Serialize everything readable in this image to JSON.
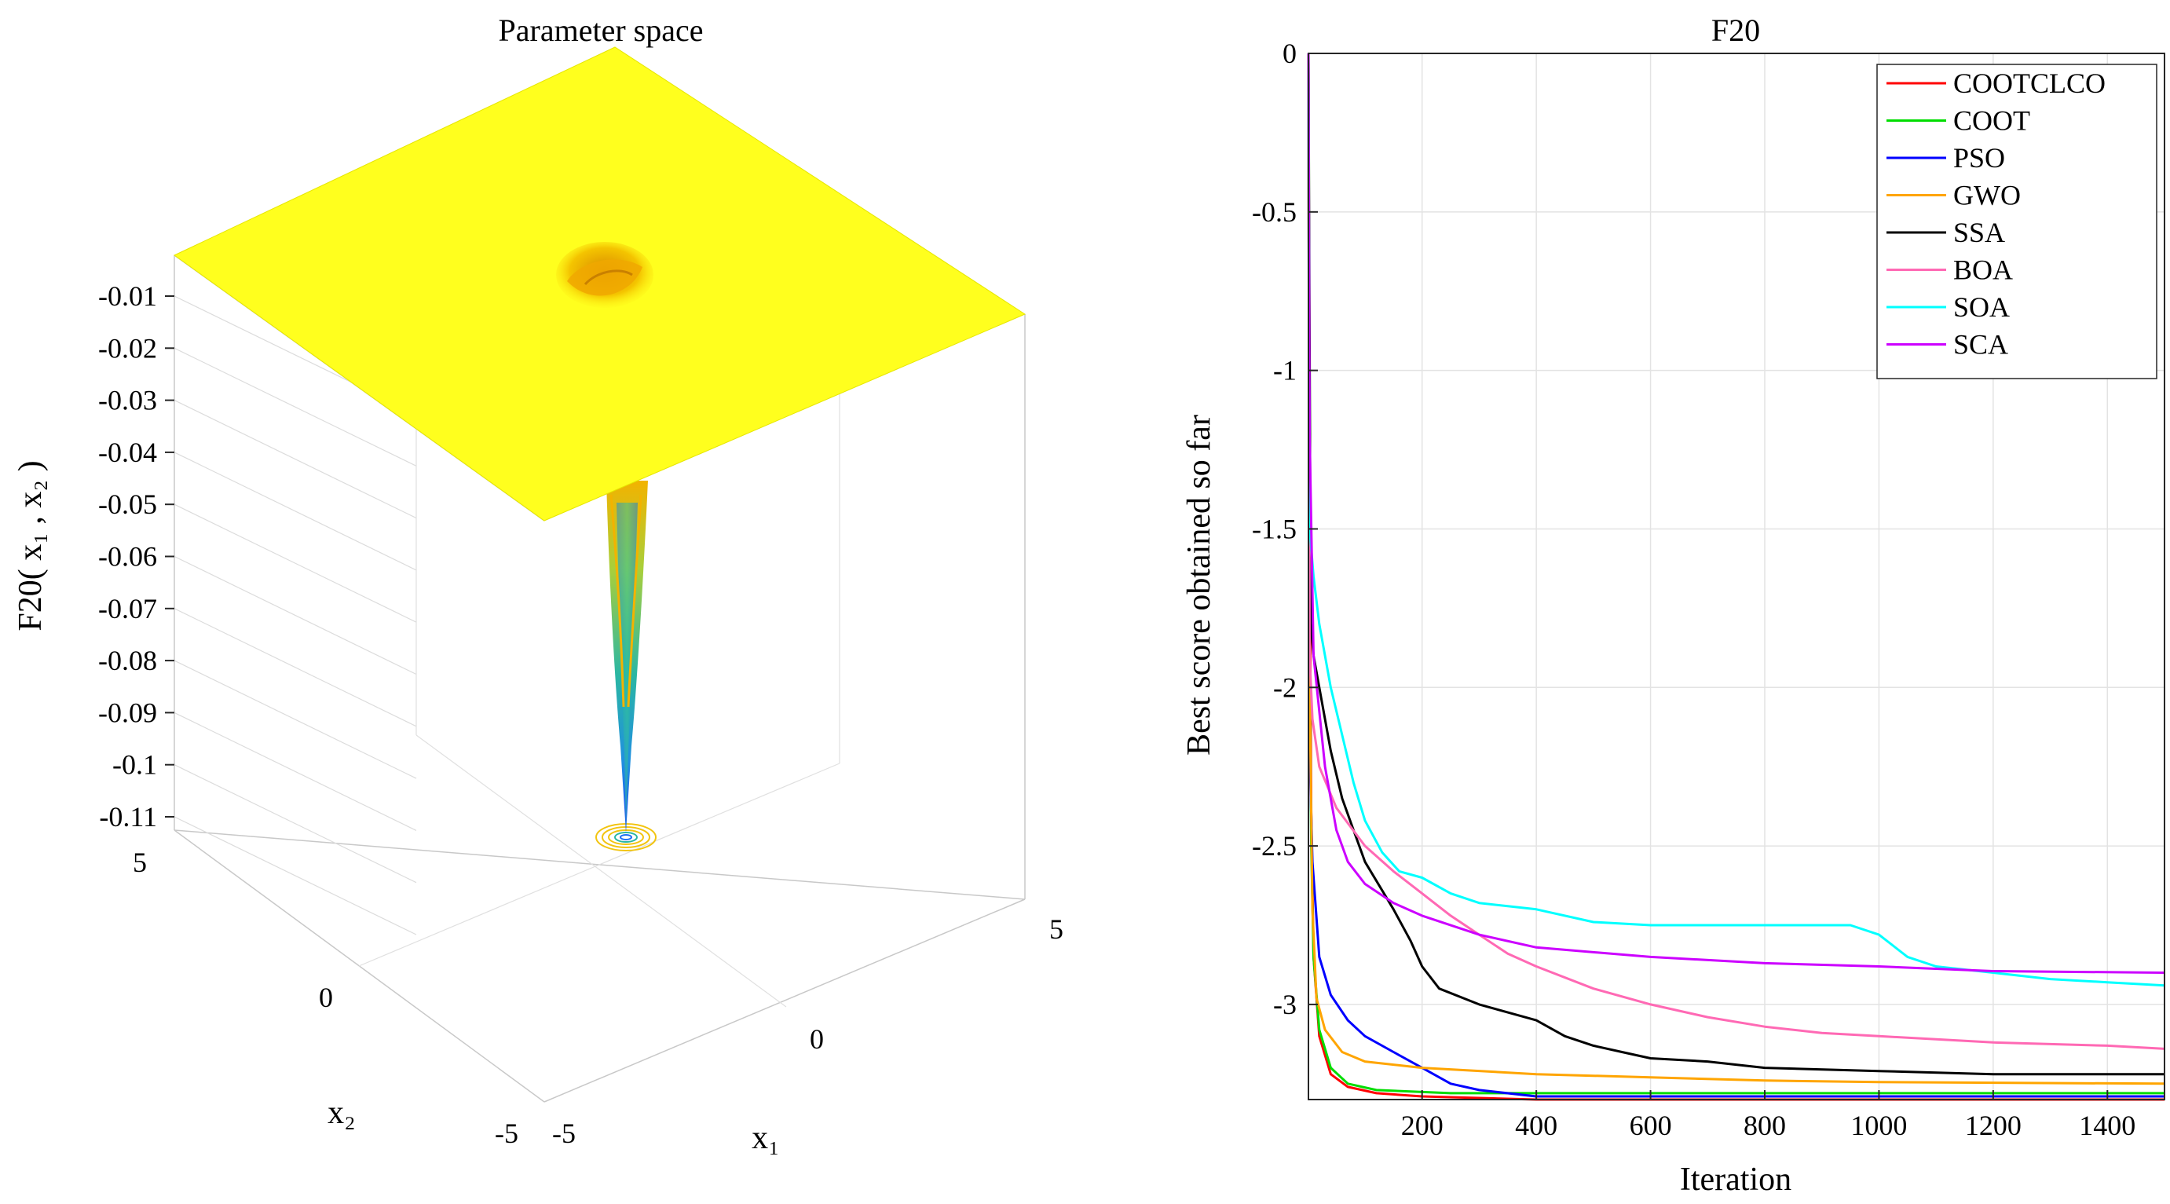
{
  "chart_data": [
    {
      "type": "surface3d",
      "title": "Parameter space",
      "zlabel": "F20( x₁ , x₂ )",
      "xlabel": "x₁",
      "ylabel": "x₂",
      "x_ticks": [
        "-5",
        "0",
        "5"
      ],
      "y_ticks": [
        "-5",
        "0",
        "5"
      ],
      "z_ticks": [
        "-0.01",
        "-0.02",
        "-0.03",
        "-0.04",
        "-0.05",
        "-0.06",
        "-0.07",
        "-0.08",
        "-0.09",
        "-0.1",
        "-0.11"
      ],
      "xlim": [
        -5,
        5
      ],
      "ylim": [
        -5,
        5
      ],
      "zlim": [
        -0.11,
        0
      ],
      "surface_colors": {
        "plateau": "#ffff1e",
        "well_top": "#f5b800",
        "well_mid": "#2bb7a3",
        "well_bottom": "#1b6ef5",
        "contour": "#f2c40f"
      }
    },
    {
      "type": "line",
      "title": "F20",
      "xlabel": "Iteration",
      "ylabel": "Best score obtained so far",
      "xlim": [
        1,
        1500
      ],
      "ylim": [
        -3.3,
        0
      ],
      "x_ticks": [
        "200",
        "400",
        "600",
        "800",
        "1000",
        "1200",
        "1400"
      ],
      "y_ticks": [
        "0",
        "-0.5",
        "-1",
        "-1.5",
        "-2",
        "-2.5",
        "-3"
      ],
      "grid": true,
      "legend_position": "top-right",
      "series": [
        {
          "name": "COOTCLCO",
          "color": "#ff0000",
          "points": [
            [
              1,
              0
            ],
            [
              3,
              -1.6
            ],
            [
              6,
              -2.4
            ],
            [
              10,
              -2.85
            ],
            [
              20,
              -3.1
            ],
            [
              40,
              -3.22
            ],
            [
              70,
              -3.26
            ],
            [
              120,
              -3.28
            ],
            [
              200,
              -3.29
            ],
            [
              400,
              -3.3
            ],
            [
              1500,
              -3.3
            ]
          ]
        },
        {
          "name": "COOT",
          "color": "#00dd00",
          "points": [
            [
              1,
              0
            ],
            [
              3,
              -1.9
            ],
            [
              6,
              -2.5
            ],
            [
              10,
              -2.85
            ],
            [
              20,
              -3.08
            ],
            [
              40,
              -3.2
            ],
            [
              70,
              -3.25
            ],
            [
              120,
              -3.27
            ],
            [
              250,
              -3.28
            ],
            [
              400,
              -3.28
            ],
            [
              1500,
              -3.28
            ]
          ]
        },
        {
          "name": "PSO",
          "color": "#0000ff",
          "points": [
            [
              1,
              0
            ],
            [
              3,
              -2.2
            ],
            [
              8,
              -2.55
            ],
            [
              20,
              -2.85
            ],
            [
              40,
              -2.97
            ],
            [
              70,
              -3.05
            ],
            [
              100,
              -3.1
            ],
            [
              150,
              -3.15
            ],
            [
              200,
              -3.2
            ],
            [
              250,
              -3.25
            ],
            [
              300,
              -3.27
            ],
            [
              400,
              -3.29
            ],
            [
              1500,
              -3.29
            ]
          ]
        },
        {
          "name": "GWO",
          "color": "#ffa500",
          "points": [
            [
              1,
              0
            ],
            [
              3,
              -2.0
            ],
            [
              8,
              -2.7
            ],
            [
              15,
              -2.98
            ],
            [
              30,
              -3.08
            ],
            [
              60,
              -3.15
            ],
            [
              100,
              -3.18
            ],
            [
              200,
              -3.2
            ],
            [
              400,
              -3.22
            ],
            [
              600,
              -3.23
            ],
            [
              800,
              -3.24
            ],
            [
              1000,
              -3.245
            ],
            [
              1500,
              -3.25
            ]
          ]
        },
        {
          "name": "SSA",
          "color": "#000000",
          "points": [
            [
              1,
              0
            ],
            [
              5,
              -1.8
            ],
            [
              10,
              -1.9
            ],
            [
              20,
              -2.0
            ],
            [
              40,
              -2.2
            ],
            [
              60,
              -2.35
            ],
            [
              80,
              -2.45
            ],
            [
              100,
              -2.55
            ],
            [
              150,
              -2.7
            ],
            [
              180,
              -2.8
            ],
            [
              200,
              -2.88
            ],
            [
              230,
              -2.95
            ],
            [
              300,
              -3.0
            ],
            [
              400,
              -3.05
            ],
            [
              450,
              -3.1
            ],
            [
              500,
              -3.13
            ],
            [
              550,
              -3.15
            ],
            [
              600,
              -3.17
            ],
            [
              700,
              -3.18
            ],
            [
              800,
              -3.2
            ],
            [
              1000,
              -3.21
            ],
            [
              1200,
              -3.22
            ],
            [
              1500,
              -3.22
            ]
          ]
        },
        {
          "name": "BOA",
          "color": "#ff69b4",
          "points": [
            [
              1,
              0
            ],
            [
              3,
              -1.9
            ],
            [
              8,
              -2.1
            ],
            [
              20,
              -2.25
            ],
            [
              50,
              -2.38
            ],
            [
              100,
              -2.5
            ],
            [
              150,
              -2.58
            ],
            [
              200,
              -2.65
            ],
            [
              250,
              -2.72
            ],
            [
              300,
              -2.78
            ],
            [
              350,
              -2.84
            ],
            [
              400,
              -2.88
            ],
            [
              500,
              -2.95
            ],
            [
              600,
              -3.0
            ],
            [
              700,
              -3.04
            ],
            [
              800,
              -3.07
            ],
            [
              900,
              -3.09
            ],
            [
              1000,
              -3.1
            ],
            [
              1200,
              -3.12
            ],
            [
              1400,
              -3.13
            ],
            [
              1500,
              -3.14
            ]
          ]
        },
        {
          "name": "SOA",
          "color": "#00ffff",
          "points": [
            [
              1,
              0
            ],
            [
              3,
              -1.5
            ],
            [
              10,
              -1.65
            ],
            [
              20,
              -1.8
            ],
            [
              40,
              -2.0
            ],
            [
              60,
              -2.15
            ],
            [
              80,
              -2.3
            ],
            [
              100,
              -2.42
            ],
            [
              130,
              -2.52
            ],
            [
              160,
              -2.58
            ],
            [
              200,
              -2.6
            ],
            [
              250,
              -2.65
            ],
            [
              300,
              -2.68
            ],
            [
              400,
              -2.7
            ],
            [
              500,
              -2.74
            ],
            [
              600,
              -2.75
            ],
            [
              900,
              -2.75
            ],
            [
              950,
              -2.75
            ],
            [
              1000,
              -2.78
            ],
            [
              1050,
              -2.85
            ],
            [
              1100,
              -2.88
            ],
            [
              1200,
              -2.9
            ],
            [
              1300,
              -2.92
            ],
            [
              1400,
              -2.93
            ],
            [
              1500,
              -2.94
            ]
          ]
        },
        {
          "name": "SCA",
          "color": "#cc00ff",
          "points": [
            [
              1,
              0
            ],
            [
              3,
              -1.2
            ],
            [
              10,
              -1.9
            ],
            [
              30,
              -2.25
            ],
            [
              50,
              -2.45
            ],
            [
              70,
              -2.55
            ],
            [
              100,
              -2.62
            ],
            [
              150,
              -2.68
            ],
            [
              200,
              -2.72
            ],
            [
              300,
              -2.78
            ],
            [
              400,
              -2.82
            ],
            [
              600,
              -2.85
            ],
            [
              800,
              -2.87
            ],
            [
              1000,
              -2.88
            ],
            [
              1200,
              -2.895
            ],
            [
              1500,
              -2.9
            ]
          ]
        }
      ]
    }
  ]
}
